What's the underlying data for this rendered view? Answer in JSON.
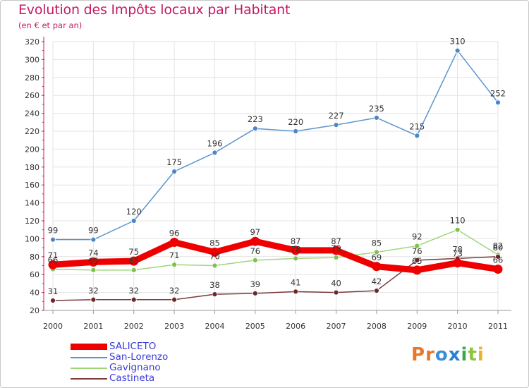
{
  "title": "Evolution des Impôts locaux par Habitant",
  "subtitle": "(en € et par an)",
  "brand": {
    "letters": [
      "P",
      "r",
      "o",
      "x",
      "i",
      "t",
      "i"
    ],
    "colors": [
      "#e8772a",
      "#e8772a",
      "#3a8fd8",
      "#2d7fd0",
      "#3aa84c",
      "#8fc23f",
      "#e6b32b"
    ]
  },
  "chart_data": {
    "type": "line",
    "title": "Evolution des Impôts locaux par Habitant",
    "subtitle": "(en € et par an)",
    "xlabel": "",
    "ylabel": "",
    "x": [
      "2000",
      "2001",
      "2002",
      "2003",
      "2004",
      "2005",
      "2006",
      "2007",
      "2008",
      "2009",
      "2010",
      "2011"
    ],
    "ylim": [
      20,
      320
    ],
    "yticks": [
      "20",
      "40",
      "60",
      "80",
      "100",
      "120",
      "140",
      "160",
      "180",
      "200",
      "220",
      "240",
      "260",
      "280",
      "300",
      "320"
    ],
    "grid": true,
    "series": [
      {
        "name": "San-Lorenzo",
        "color": "#5b95cf",
        "marker": "#4a86c8",
        "values": [
          99,
          99,
          120,
          175,
          196,
          223,
          220,
          227,
          235,
          215,
          310,
          252
        ],
        "labels": [
          "99",
          "99",
          "120",
          "175",
          "196",
          "223",
          "220",
          "227",
          "235",
          "215",
          "310",
          "252"
        ]
      },
      {
        "name": "Gavignano",
        "color": "#9fd67a",
        "marker": "#7ec24c",
        "values": [
          66,
          65,
          65,
          71,
          70,
          76,
          78,
          79,
          85,
          92,
          110,
          82
        ],
        "labels": [
          "66",
          "65",
          "65",
          "71",
          "70",
          "76",
          "78",
          "79",
          "85",
          "92",
          "110",
          "82"
        ]
      },
      {
        "name": "Castineta",
        "color": "#7a3a3a",
        "marker": "#6b2828",
        "values": [
          31,
          32,
          32,
          32,
          38,
          39,
          41,
          40,
          42,
          76,
          78,
          80
        ],
        "labels": [
          "31",
          "32",
          "32",
          "32",
          "38",
          "39",
          "41",
          "40",
          "42",
          "76",
          "78",
          "80"
        ]
      },
      {
        "name": "SALICETO",
        "color": "#ee0000",
        "marker": "#ee0000",
        "thick": true,
        "values": [
          71,
          74,
          75,
          96,
          85,
          97,
          87,
          87,
          69,
          65,
          73,
          66
        ],
        "labels": [
          "71",
          "74",
          "75",
          "96",
          "85",
          "97",
          "87",
          "87",
          "69",
          "65",
          "73",
          "66"
        ]
      }
    ],
    "legend": [
      "SALICETO",
      "San-Lorenzo",
      "Gavignano",
      "Castineta"
    ],
    "legend_colors": [
      "#ee0000",
      "#5b95cf",
      "#9fd67a",
      "#7a3a3a"
    ],
    "legend_placement": "bottom-left"
  }
}
